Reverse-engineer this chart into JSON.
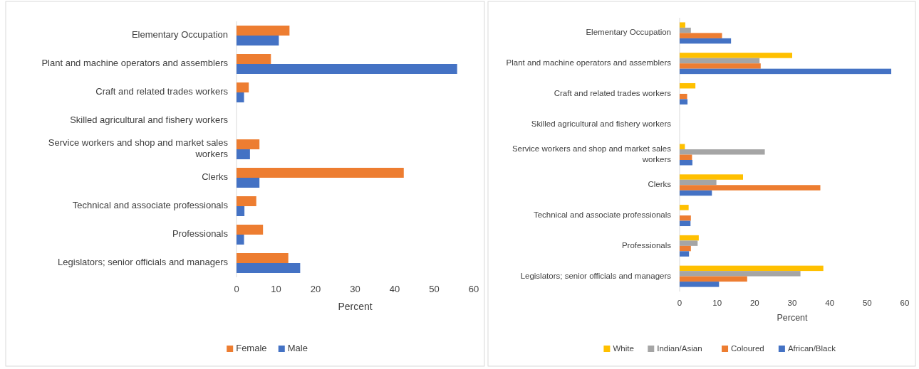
{
  "chart_data": [
    {
      "type": "bar",
      "orientation": "horizontal",
      "xlabel": "Percent",
      "categories": [
        "Elementary Occupation",
        "Plant and machine operators and assemblers",
        "Craft and related trades workers",
        "Skilled agricultural and fishery workers",
        "Service workers and shop and market sales workers",
        "Clerks",
        "Technical and associate professionals",
        "Professionals",
        "Legislators; senior officials and managers"
      ],
      "xlim": [
        0,
        60
      ],
      "xticks": [
        0,
        10,
        20,
        30,
        40,
        50,
        60
      ],
      "grid": false,
      "legend": "bottom",
      "series": [
        {
          "name": "Female",
          "color": "#ed7d31",
          "values": [
            13.4,
            8.7,
            3.1,
            null,
            5.8,
            42.3,
            5.0,
            6.7,
            13.1
          ]
        },
        {
          "name": "Male",
          "color": "#4472c4",
          "values": [
            10.7,
            55.8,
            1.9,
            null,
            3.4,
            5.8,
            2.0,
            1.9,
            16.1
          ]
        }
      ]
    },
    {
      "type": "bar",
      "orientation": "horizontal",
      "xlabel": "Percent",
      "categories": [
        "Elementary Occupation",
        "Plant and machine operators and assemblers",
        "Craft and related trades workers",
        "Skilled agricultural and fishery workers",
        "Service workers and shop and market sales workers",
        "Clerks",
        "Technical and associate professionals",
        "Professionals",
        "Legislators; senior officials and managers"
      ],
      "xlim": [
        0,
        60
      ],
      "xticks": [
        0,
        10,
        20,
        30,
        40,
        50,
        60
      ],
      "grid": false,
      "legend": "bottom",
      "series": [
        {
          "name": "White",
          "color": "#ffc000",
          "values": [
            1.5,
            30.0,
            4.2,
            null,
            1.4,
            16.9,
            2.4,
            5.1,
            38.3
          ]
        },
        {
          "name": "Indian/Asian",
          "color": "#a5a5a5",
          "values": [
            3.0,
            21.3,
            null,
            null,
            22.7,
            9.8,
            null,
            4.8,
            32.2
          ]
        },
        {
          "name": "Coloured",
          "color": "#ed7d31",
          "values": [
            11.3,
            21.6,
            2.0,
            null,
            3.3,
            37.5,
            3.0,
            3.0,
            18.0
          ]
        },
        {
          "name": "African/Black",
          "color": "#4472c4",
          "values": [
            13.7,
            56.4,
            2.1,
            null,
            3.4,
            8.6,
            2.9,
            2.5,
            10.5
          ]
        }
      ]
    }
  ]
}
